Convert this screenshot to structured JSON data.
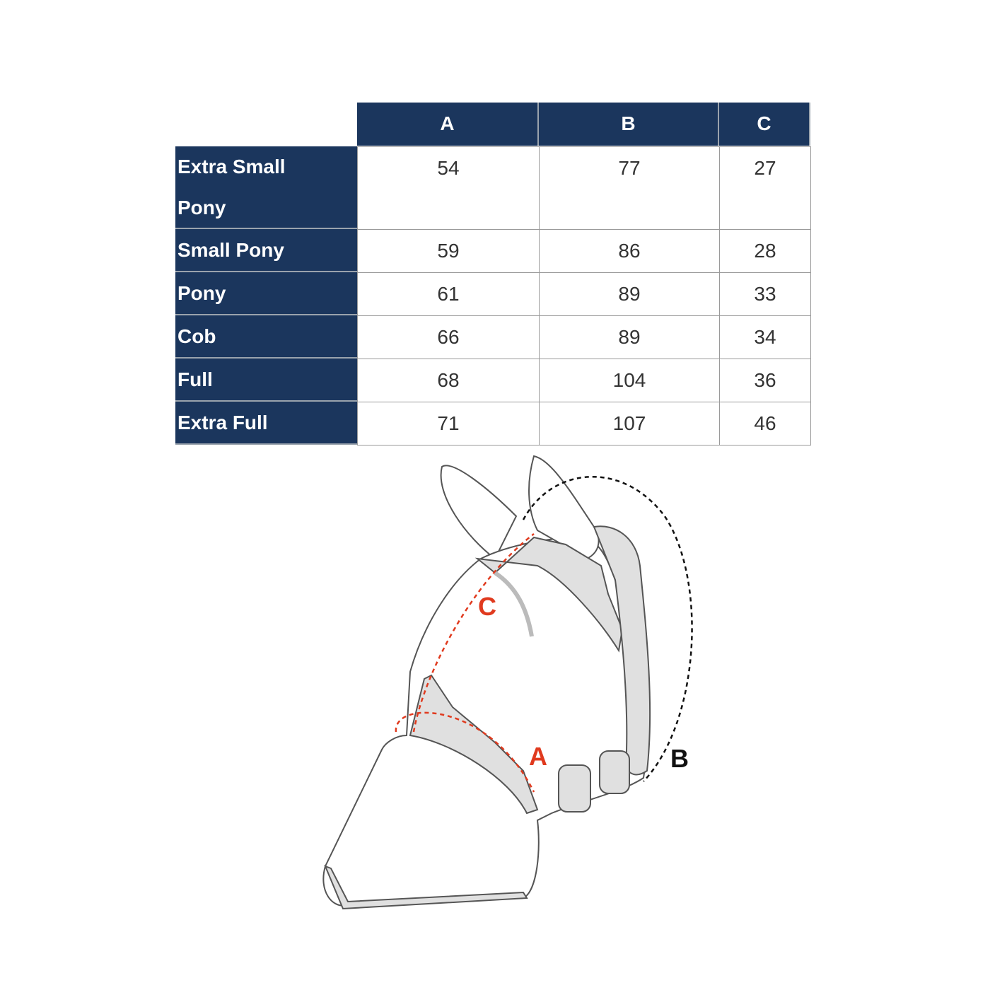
{
  "table": {
    "columns": [
      "A",
      "B",
      "C"
    ],
    "rows": [
      {
        "size": "Extra Small Pony",
        "values": [
          "54",
          "77",
          "27"
        ]
      },
      {
        "size": "Small Pony",
        "values": [
          "59",
          "86",
          "28"
        ]
      },
      {
        "size": "Pony",
        "values": [
          "61",
          "89",
          "33"
        ]
      },
      {
        "size": "Cob",
        "values": [
          "66",
          "89",
          "34"
        ]
      },
      {
        "size": "Full",
        "values": [
          "68",
          "104",
          "36"
        ]
      },
      {
        "size": "Extra Full",
        "values": [
          "71",
          "107",
          "46"
        ]
      }
    ]
  },
  "diagram": {
    "labels": {
      "a": "A",
      "b": "B",
      "c": "C"
    },
    "colors": {
      "header": "#1b365d",
      "measure_red": "#e03a1e",
      "measure_black": "#111111"
    }
  }
}
